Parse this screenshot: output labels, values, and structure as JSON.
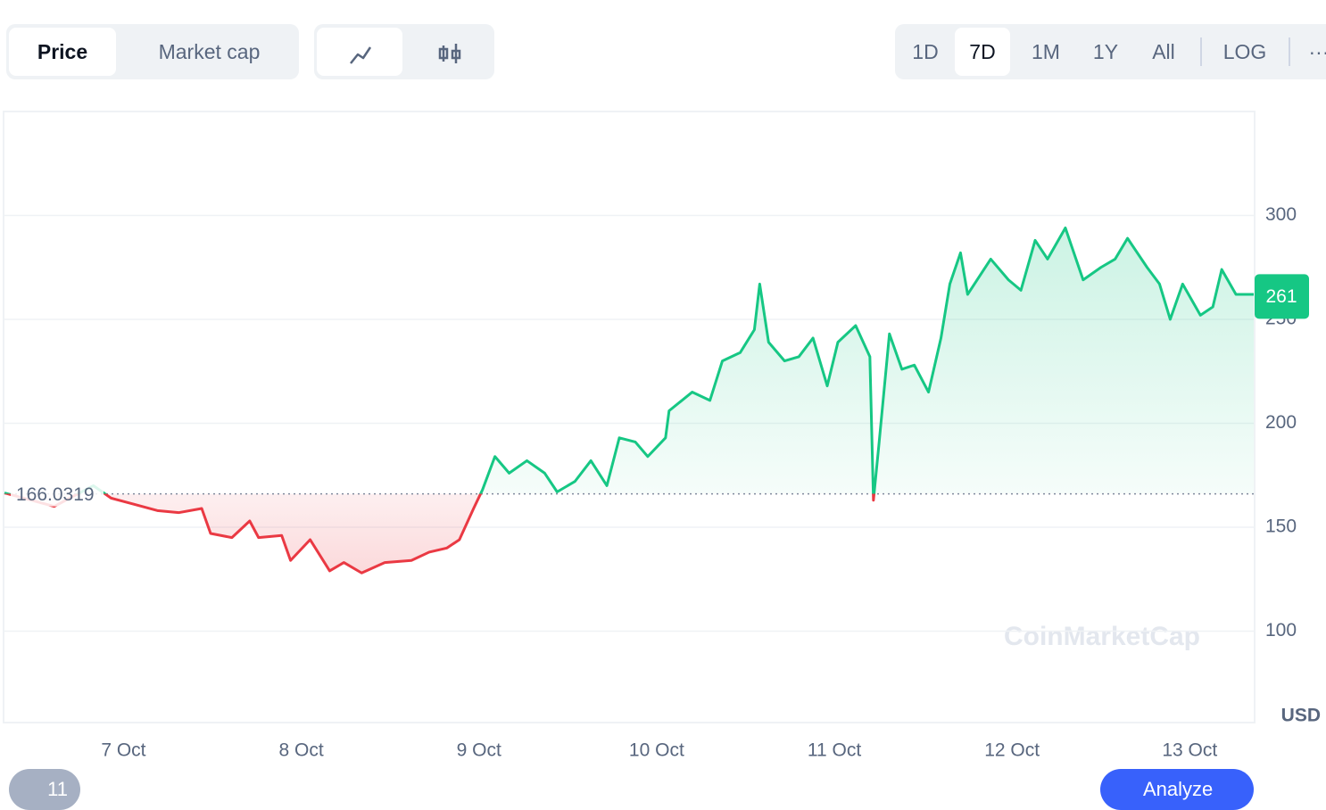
{
  "ui": {
    "tabs": [
      "Price",
      "Market cap"
    ],
    "ranges": [
      "1D",
      "7D",
      "1M",
      "1Y",
      "All"
    ],
    "log": "LOG",
    "more": "···",
    "history": "11",
    "analyze": "Analyze",
    "watermark": "CoinMarketCap",
    "currency": "USD"
  },
  "chart_data": {
    "type": "line",
    "x": [
      6.33,
      6.61,
      6.83,
      6.93,
      7.06,
      7.19,
      7.31,
      7.44,
      7.49,
      7.61,
      7.71,
      7.76,
      7.89,
      7.94,
      8.05,
      8.16,
      8.24,
      8.34,
      8.47,
      8.62,
      8.72,
      8.82,
      8.89,
      8.97,
      9.02,
      9.09,
      9.17,
      9.27,
      9.37,
      9.44,
      9.54,
      9.63,
      9.72,
      9.79,
      9.88,
      9.95,
      10.05,
      10.07,
      10.2,
      10.3,
      10.37,
      10.47,
      10.55,
      10.58,
      10.63,
      10.72,
      10.8,
      10.88,
      10.96,
      11.02,
      11.12,
      11.2,
      11.22,
      11.25,
      11.31,
      11.38,
      11.45,
      11.53,
      11.6,
      11.65,
      11.71,
      11.75,
      11.88,
      11.98,
      12.05,
      12.13,
      12.2,
      12.3,
      12.4,
      12.5,
      12.58,
      12.65,
      12.76,
      12.83,
      12.89,
      12.96,
      13.06,
      13.13,
      13.18,
      13.26,
      13.36
    ],
    "series": [
      {
        "name": "Price",
        "color": "#16c784",
        "values": [
          166.5,
          160,
          170,
          164,
          161,
          158,
          157,
          159,
          147,
          145,
          153,
          145,
          146,
          134,
          144,
          129,
          133,
          128,
          133,
          134,
          138,
          140,
          144,
          159,
          168,
          184,
          176,
          182,
          176,
          167,
          172,
          182,
          170,
          193,
          191,
          184,
          193,
          206,
          215,
          211,
          230,
          234,
          245,
          267,
          239,
          230,
          232,
          241,
          218,
          239,
          247,
          232,
          163,
          189,
          243,
          226,
          228,
          215,
          241,
          267,
          282,
          262,
          279,
          269,
          264,
          288,
          279,
          294,
          269,
          275,
          279,
          289,
          275,
          267,
          250,
          267,
          252,
          256,
          274,
          262,
          262
        ]
      }
    ],
    "baseline": 166.0319,
    "below_color": "#ea3943",
    "current": 261,
    "xlim": [
      6.33,
      13.36
    ],
    "xticks": [
      {
        "value": 7,
        "label": "7 Oct"
      },
      {
        "value": 8,
        "label": "8 Oct"
      },
      {
        "value": 9,
        "label": "9 Oct"
      },
      {
        "value": 10,
        "label": "10 Oct"
      },
      {
        "value": 11,
        "label": "11 Oct"
      },
      {
        "value": 12,
        "label": "12 Oct"
      },
      {
        "value": 13,
        "label": "13 Oct"
      }
    ],
    "ylim": [
      56,
      350
    ],
    "yticks": [
      100,
      150,
      200,
      250,
      300
    ],
    "grid": true
  }
}
